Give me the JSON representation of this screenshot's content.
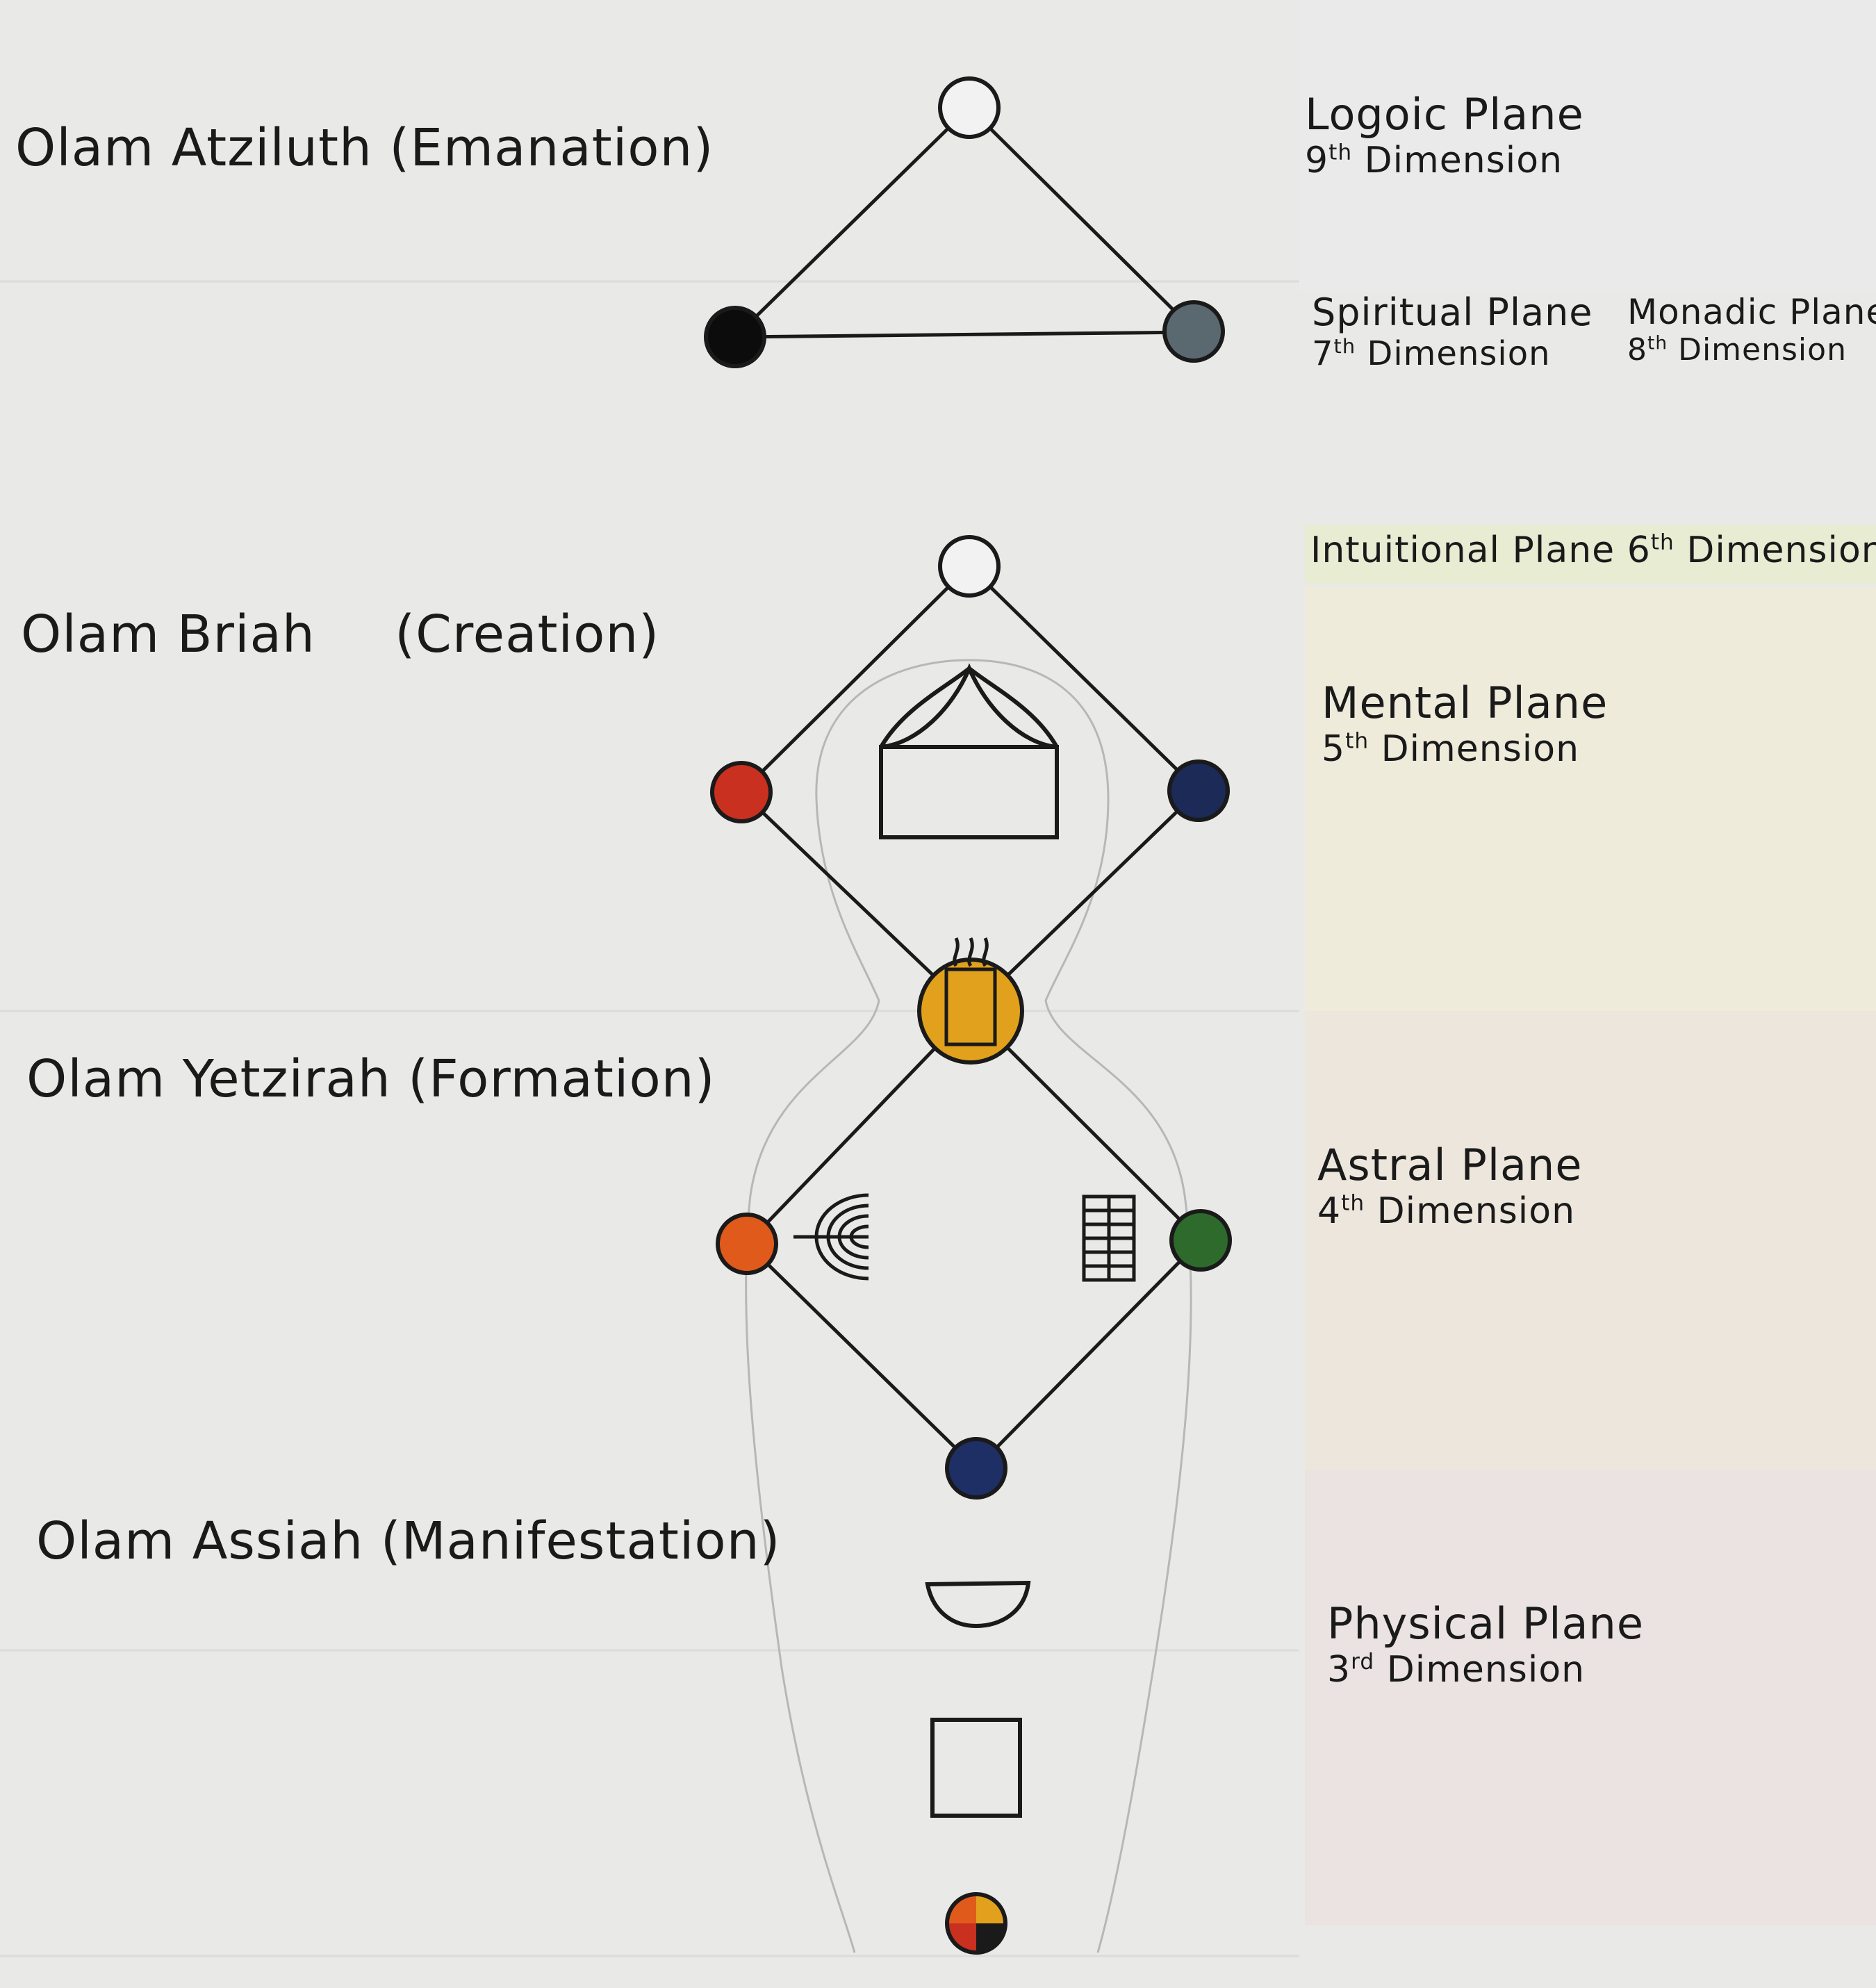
{
  "colors": {
    "paper": "#e9e9e8",
    "band_intuitional": "#e7ecd2",
    "band_mental": "#eeebdb",
    "band_astral": "#ede6dc",
    "band_physical": "#ebe3e2",
    "ink": "#1a1a1a",
    "node_white": "#f2f2f2",
    "node_black": "#0c0c0c",
    "node_gray": "#5a6870",
    "node_red": "#c9301f",
    "node_navy": "#1b2a57",
    "node_gold": "#e2a11c",
    "node_orange": "#e05a1c",
    "node_green": "#2e6a2c",
    "node_navy2": "#1e2f66"
  },
  "worlds": [
    {
      "name": "Olam Atziluth",
      "meaning": "(Emanation)"
    },
    {
      "name": "Olam Briah",
      "meaning": "(Creation)"
    },
    {
      "name": "Olam Yetzirah",
      "meaning": "(Formation)"
    },
    {
      "name": "Olam Assiah",
      "meaning": "(Manifestation)"
    }
  ],
  "planes": {
    "logoic": {
      "name": "Logoic Plane",
      "dim_num": "9",
      "dim_ord": "th",
      "dim_word": "Dimension"
    },
    "spiritual": {
      "name": "Spiritual Plane",
      "dim_num": "7",
      "dim_ord": "th",
      "dim_word": "Dimension"
    },
    "monadic": {
      "name": "Monadic Plane",
      "dim_num": "8",
      "dim_ord": "th",
      "dim_word": "Dimension"
    },
    "intuitional": {
      "name": "Intuitional Plane",
      "dim_num": "6",
      "dim_ord": "th",
      "dim_word": "Dimension"
    },
    "mental": {
      "name": "Mental Plane",
      "dim_num": "5",
      "dim_ord": "th",
      "dim_word": "Dimension"
    },
    "astral": {
      "name": "Astral Plane",
      "dim_num": "4",
      "dim_ord": "th",
      "dim_word": "Dimension"
    },
    "physical": {
      "name": "Physical Plane",
      "dim_num": "3",
      "dim_ord": "rd",
      "dim_word": "Dimension"
    }
  },
  "icons": {
    "temple": "temple-icon",
    "altar": "incense-altar-icon",
    "menorah": "menorah-icon",
    "table": "showbread-table-icon",
    "laver": "laver-bowl-icon",
    "brazen_altar": "brazen-altar-icon"
  }
}
